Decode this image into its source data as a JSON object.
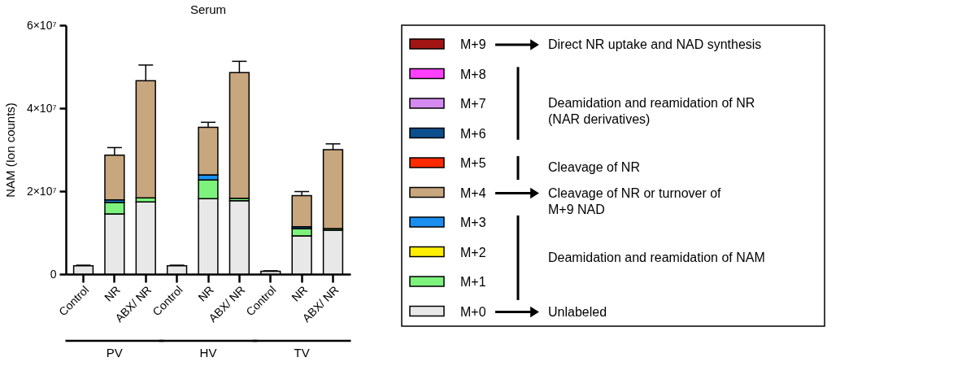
{
  "chart_data": {
    "type": "bar",
    "stacked": true,
    "title": "Serum",
    "ylabel": "NAM (Ion counts)",
    "categories": [
      "Control",
      "NR",
      "ABX/ NR",
      "Control",
      "NR",
      "ABX/ NR",
      "Control",
      "NR",
      "ABX/ NR"
    ],
    "ylim": [
      0,
      60000000
    ],
    "yticks": [
      0,
      {
        "value": 20000000,
        "label": "2×10⁷"
      },
      {
        "value": 40000000,
        "label": "4×10⁷"
      },
      {
        "value": 60000000,
        "label": "6×10⁷"
      }
    ],
    "grid": false,
    "legend": "right",
    "series": [
      {
        "name": "M+0",
        "color": "#e8e8e8",
        "values": [
          2000000,
          14500000,
          17400000,
          2000000,
          18200000,
          17700000,
          700000,
          9200000,
          10600000
        ],
        "errors": [
          150000,
          null,
          null,
          150000,
          null,
          null,
          100000,
          null,
          null
        ]
      },
      {
        "name": "M+1",
        "color": "#7df27d",
        "values": [
          null,
          2800000,
          1000000,
          null,
          4500000,
          600000,
          null,
          1800000,
          400000
        ]
      },
      {
        "name": "M+2",
        "color": "#ffee00",
        "values": [
          null,
          null,
          null,
          null,
          null,
          null,
          null,
          null,
          null
        ]
      },
      {
        "name": "M+3",
        "color": "#1a8ff0",
        "values": [
          null,
          600000,
          null,
          null,
          1200000,
          null,
          null,
          400000,
          null
        ]
      },
      {
        "name": "M+4",
        "color": "#c8a67e",
        "values": [
          null,
          10800000,
          28200000,
          null,
          11500000,
          30300000,
          null,
          7500000,
          19000000
        ],
        "errors": [
          null,
          1800000,
          3800000,
          null,
          1200000,
          2700000,
          null,
          1000000,
          1400000
        ]
      },
      {
        "name": "M+5",
        "color": "#ff2a00",
        "values": [
          null,
          null,
          null,
          null,
          null,
          null,
          null,
          null,
          null
        ]
      },
      {
        "name": "M+6",
        "color": "#0b4f8f",
        "values": [
          null,
          null,
          null,
          null,
          null,
          null,
          null,
          null,
          null
        ]
      },
      {
        "name": "M+7",
        "color": "#d58af0",
        "values": [
          null,
          null,
          null,
          null,
          null,
          null,
          null,
          null,
          null
        ]
      },
      {
        "name": "M+8",
        "color": "#ff40ff",
        "values": [
          null,
          null,
          null,
          null,
          null,
          null,
          null,
          null,
          null
        ]
      },
      {
        "name": "M+9",
        "color": "#a31515",
        "values": [
          null,
          null,
          null,
          null,
          null,
          null,
          null,
          null,
          null
        ]
      }
    ],
    "annotations": [
      "PV",
      "HV",
      "TV",
      "Direct NR uptake and NAD synthesis",
      "Deamidation and reamidation of NR\n(NAR derivatives)",
      "Cleavage of NR",
      "Cleavage of NR or turnover of\nM+9 NAD",
      "Deamidation and reamidation of NAM",
      "Unlabeled"
    ]
  }
}
